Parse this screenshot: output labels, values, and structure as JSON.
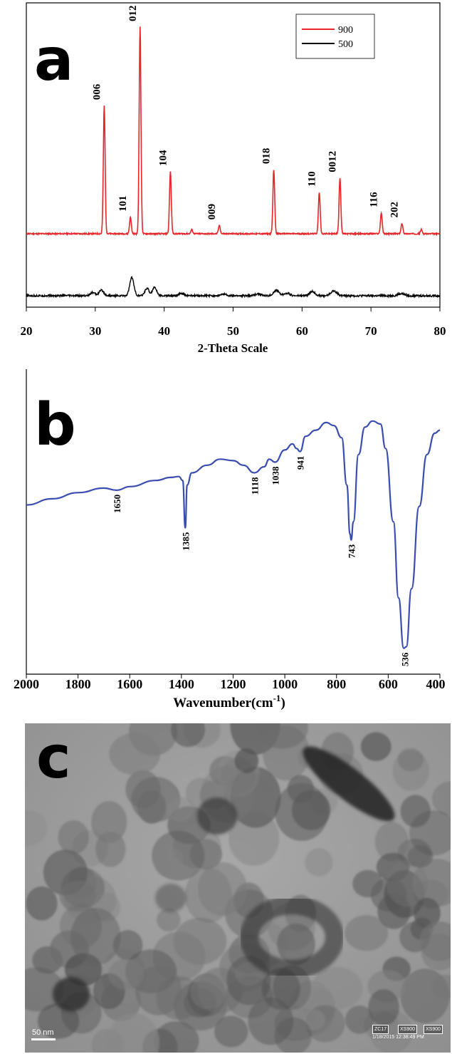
{
  "panels": {
    "a_label": "a",
    "b_label": "b",
    "c_label": "c"
  },
  "chart_data": [
    {
      "type": "line",
      "panel": "a",
      "xlabel": "2-Theta Scale",
      "ylabel": "",
      "xlim": [
        20,
        80
      ],
      "xticks": [
        20,
        30,
        40,
        50,
        60,
        70,
        80
      ],
      "legend": {
        "placement": "top-right",
        "entries": [
          "900",
          "500"
        ]
      },
      "series": [
        {
          "name": "900",
          "color": "#e8262a",
          "baseline": 0.0,
          "peaks": [
            {
              "x": 31.3,
              "y": 0.62,
              "w": 0.13
            },
            {
              "x": 35.1,
              "y": 0.08,
              "w": 0.13
            },
            {
              "x": 36.5,
              "y": 1.0,
              "w": 0.13
            },
            {
              "x": 40.9,
              "y": 0.3,
              "w": 0.13
            },
            {
              "x": 44.0,
              "y": 0.02,
              "w": 0.13
            },
            {
              "x": 48.0,
              "y": 0.04,
              "w": 0.13
            },
            {
              "x": 55.9,
              "y": 0.31,
              "w": 0.13
            },
            {
              "x": 62.5,
              "y": 0.2,
              "w": 0.13
            },
            {
              "x": 65.5,
              "y": 0.27,
              "w": 0.13
            },
            {
              "x": 71.5,
              "y": 0.1,
              "w": 0.13
            },
            {
              "x": 74.5,
              "y": 0.05,
              "w": 0.13
            },
            {
              "x": 77.3,
              "y": 0.02,
              "w": 0.13
            }
          ]
        },
        {
          "name": "500",
          "color": "#000000",
          "baseline": 0.0,
          "peaks": [
            {
              "x": 29.6,
              "y": 0.03,
              "w": 0.35
            },
            {
              "x": 30.9,
              "y": 0.05,
              "w": 0.35
            },
            {
              "x": 35.3,
              "y": 0.17,
              "w": 0.3
            },
            {
              "x": 37.5,
              "y": 0.07,
              "w": 0.3
            },
            {
              "x": 38.6,
              "y": 0.08,
              "w": 0.3
            },
            {
              "x": 42.5,
              "y": 0.02,
              "w": 0.4
            },
            {
              "x": 48.7,
              "y": 0.015,
              "w": 0.4
            },
            {
              "x": 53.6,
              "y": 0.02,
              "w": 0.4
            },
            {
              "x": 56.3,
              "y": 0.05,
              "w": 0.4
            },
            {
              "x": 57.8,
              "y": 0.025,
              "w": 0.4
            },
            {
              "x": 61.5,
              "y": 0.04,
              "w": 0.4
            },
            {
              "x": 64.6,
              "y": 0.045,
              "w": 0.45
            },
            {
              "x": 74.4,
              "y": 0.02,
              "w": 0.45
            }
          ]
        }
      ],
      "annotations": [
        {
          "text": "006",
          "x": 31.3
        },
        {
          "text": "101",
          "x": 35.1
        },
        {
          "text": "012",
          "x": 36.5
        },
        {
          "text": "104",
          "x": 40.9
        },
        {
          "text": "009",
          "x": 48.0
        },
        {
          "text": "018",
          "x": 55.9
        },
        {
          "text": "110",
          "x": 62.5
        },
        {
          "text": "0012",
          "x": 65.5
        },
        {
          "text": "116",
          "x": 71.5
        },
        {
          "text": "202",
          "x": 74.5
        }
      ]
    },
    {
      "type": "line",
      "panel": "b",
      "xlabel": "Wavenumber(cm",
      "xlabel_superscript": "-1",
      "xlabel_suffix": ")",
      "ylabel": "",
      "xlim": [
        2000,
        400
      ],
      "xticks": [
        2000,
        1800,
        1600,
        1400,
        1200,
        1000,
        800,
        600,
        400
      ],
      "ylim": [
        0,
        1
      ],
      "series": [
        {
          "name": "",
          "color": "#3a4db0",
          "points": [
            [
              2000,
              0.555
            ],
            [
              1900,
              0.575
            ],
            [
              1800,
              0.595
            ],
            [
              1700,
              0.61
            ],
            [
              1650,
              0.603
            ],
            [
              1600,
              0.615
            ],
            [
              1500,
              0.635
            ],
            [
              1440,
              0.645
            ],
            [
              1410,
              0.648
            ],
            [
              1395,
              0.635
            ],
            [
              1385,
              0.48
            ],
            [
              1378,
              0.62
            ],
            [
              1360,
              0.66
            ],
            [
              1300,
              0.685
            ],
            [
              1250,
              0.705
            ],
            [
              1200,
              0.7
            ],
            [
              1160,
              0.685
            ],
            [
              1118,
              0.66
            ],
            [
              1080,
              0.68
            ],
            [
              1060,
              0.705
            ],
            [
              1038,
              0.695
            ],
            [
              1000,
              0.735
            ],
            [
              970,
              0.755
            ],
            [
              955,
              0.74
            ],
            [
              941,
              0.73
            ],
            [
              920,
              0.78
            ],
            [
              880,
              0.8
            ],
            [
              840,
              0.825
            ],
            [
              810,
              0.815
            ],
            [
              780,
              0.775
            ],
            [
              760,
              0.62
            ],
            [
              748,
              0.46
            ],
            [
              743,
              0.44
            ],
            [
              735,
              0.5
            ],
            [
              715,
              0.72
            ],
            [
              690,
              0.81
            ],
            [
              660,
              0.83
            ],
            [
              630,
              0.82
            ],
            [
              610,
              0.74
            ],
            [
              580,
              0.5
            ],
            [
              560,
              0.25
            ],
            [
              540,
              0.085
            ],
            [
              530,
              0.09
            ],
            [
              510,
              0.28
            ],
            [
              480,
              0.55
            ],
            [
              450,
              0.72
            ],
            [
              420,
              0.79
            ],
            [
              400,
              0.8
            ]
          ]
        }
      ],
      "annotations": [
        {
          "text": "1650",
          "x": 1650,
          "y": 0.603
        },
        {
          "text": "1385",
          "x": 1385,
          "y": 0.48
        },
        {
          "text": "1118",
          "x": 1118,
          "y": 0.66
        },
        {
          "text": "1038",
          "x": 1038,
          "y": 0.695
        },
        {
          "text": "941",
          "x": 941,
          "y": 0.73
        },
        {
          "text": "743",
          "x": 743,
          "y": 0.44
        },
        {
          "text": "536",
          "x": 536,
          "y": 0.085
        }
      ]
    }
  ],
  "tem_image": {
    "scale_bar_label": "50 nm",
    "info_box": [
      "ZC17",
      "XS900",
      "XS900"
    ],
    "info_line": "1/18/2015  12:38:49 PM"
  },
  "colors": {
    "xrd_900": "#e8262a",
    "xrd_500": "#000000",
    "ftir": "#3a4db0"
  }
}
